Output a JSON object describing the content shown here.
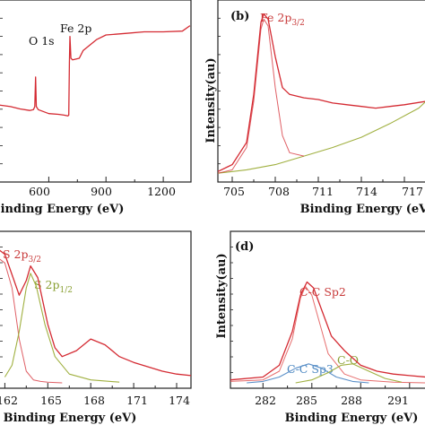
{
  "figure": {
    "panels": [
      {
        "id": "a",
        "tag": "",
        "xlabel": "Binding Energy (eV)",
        "ylabel": "",
        "xticks": [
          "600",
          "900",
          "1200"
        ],
        "annotations": [
          "O 1s",
          "Fe 2p"
        ]
      },
      {
        "id": "b",
        "tag": "(b)",
        "xlabel": "Binding Energy (eV)",
        "ylabel": "Intensity(au)",
        "xticks": [
          "705",
          "708",
          "711",
          "714",
          "717"
        ],
        "annotations": [
          "Fe 2p3/2"
        ]
      },
      {
        "id": "c",
        "tag": "",
        "xlabel": "Binding Energy (eV)",
        "ylabel": "",
        "xticks": [
          "162",
          "165",
          "168",
          "171",
          "174"
        ],
        "annotations": [
          "S 2p3/2",
          "S 2p1/2"
        ]
      },
      {
        "id": "d",
        "tag": "(d)",
        "xlabel": "Binding Energy (eV)",
        "ylabel": "Intensity(au)",
        "xticks": [
          "282",
          "285",
          "288",
          "291"
        ],
        "annotations": [
          "C-C Sp2",
          "C-C Sp3",
          "C-O"
        ]
      }
    ]
  },
  "colors": {
    "data": "#d42a32",
    "fit_green": "#a0b040",
    "fit_blue": "#5a8fc8",
    "sum_red": "#e04848",
    "label_red": "#c83a3a",
    "label_green": "#8aa034",
    "label_blue": "#4a86c0",
    "axis": "#222222"
  },
  "chart_data": [
    {
      "panel": "a",
      "type": "line",
      "xlabel": "Binding Energy (eV)",
      "xlim": [
        340,
        1345
      ],
      "series": [
        {
          "x": [
            340,
            400,
            450,
            500,
            520,
            527,
            531,
            535,
            545,
            600,
            650,
            680,
            700,
            705,
            708,
            711,
            716,
            725,
            760,
            780,
            800,
            850,
            900,
            1000,
            1100,
            1200,
            1300,
            1340
          ],
          "y": [
            46,
            45,
            43.5,
            42.5,
            43,
            45,
            64,
            45,
            43,
            40.5,
            40,
            39.5,
            39,
            39.5,
            73,
            90,
            76,
            75,
            76,
            81,
            83,
            88,
            91,
            92,
            93,
            93,
            93.5,
            97
          ]
        }
      ],
      "ylim": [
        0,
        110
      ]
    },
    {
      "panel": "b",
      "type": "line",
      "xlabel": "Binding Energy (eV)",
      "ylabel": "Intensity(au)",
      "xlim": [
        704,
        718.5
      ],
      "ylim": [
        0,
        100
      ],
      "series": [
        {
          "x": [
            704,
            705,
            706,
            706.5,
            707,
            707.2,
            707.5,
            708,
            708.5,
            709,
            710,
            711,
            712,
            713,
            714,
            715,
            716,
            717,
            718.5
          ],
          "y": [
            3,
            7,
            20,
            48,
            90,
            95,
            92,
            70,
            52,
            48,
            46,
            45,
            43,
            42,
            41,
            40,
            41,
            42,
            44
          ]
        },
        {
          "x": [
            704,
            706,
            708,
            710,
            712,
            714,
            716,
            718,
            718.5
          ],
          "y": [
            2,
            4,
            7,
            12,
            17,
            23,
            31,
            40,
            44
          ]
        },
        {
          "x": [
            704,
            705,
            706,
            706.5,
            707,
            707.2,
            707.5,
            708,
            708.5,
            709,
            710
          ],
          "y": [
            2,
            4,
            17,
            44,
            86,
            92,
            88,
            52,
            24,
            14,
            12
          ]
        }
      ]
    },
    {
      "panel": "c",
      "type": "line",
      "xlabel": "Binding Energy (eV)",
      "xlim": [
        161.6,
        175
      ],
      "ylim": [
        0,
        100
      ],
      "series": [
        {
          "x": [
            161.6,
            162,
            162.5,
            163,
            163.5,
            163.8,
            164.3,
            165,
            165.5,
            166,
            167,
            168,
            169,
            170,
            171,
            172,
            173,
            174,
            175
          ],
          "y": [
            91,
            88,
            74,
            60,
            70,
            80,
            72,
            40,
            24,
            18,
            22,
            30,
            26,
            18,
            14,
            11,
            8,
            6,
            5
          ]
        },
        {
          "x": [
            161.6,
            162,
            162.5,
            163,
            163.5,
            164,
            164.5,
            165,
            166
          ],
          "y": [
            85,
            82,
            65,
            30,
            8,
            2,
            1,
            0.5,
            0
          ]
        },
        {
          "x": [
            162,
            162.5,
            163,
            163.5,
            163.8,
            164.2,
            164.8,
            165.5,
            166.5,
            168,
            170
          ],
          "y": [
            4,
            12,
            35,
            65,
            75,
            66,
            40,
            18,
            6,
            2,
            0.5
          ]
        }
      ]
    },
    {
      "panel": "d",
      "type": "line",
      "xlabel": "Binding Energy (eV)",
      "ylabel": "Intensity(au)",
      "xlim": [
        280,
        292
      ],
      "ylim": [
        0,
        100
      ],
      "series": [
        {
          "x": [
            280,
            282,
            283,
            283.8,
            284.3,
            284.7,
            285.1,
            285.6,
            286.2,
            287,
            288,
            289,
            290,
            291,
            292
          ],
          "y": [
            2,
            4,
            12,
            35,
            60,
            69,
            65,
            50,
            32,
            22,
            12,
            8,
            6,
            5,
            4
          ]
        },
        {
          "x": [
            280,
            282,
            283,
            283.8,
            284.3,
            284.6,
            285.0,
            285.5,
            286,
            287,
            288,
            290,
            292
          ],
          "y": [
            1,
            2,
            8,
            30,
            58,
            66,
            60,
            40,
            20,
            6,
            2,
            0.5,
            0
          ]
        },
        {
          "x": [
            281,
            282,
            283,
            284,
            284.8,
            285.6,
            286.5,
            287.5,
            288.5
          ],
          "y": [
            0,
            1,
            4,
            10,
            13,
            10,
            4,
            1,
            0
          ]
        },
        {
          "x": [
            284,
            285,
            286,
            286.8,
            287.5,
            288.5,
            289.5,
            290.5
          ],
          "y": [
            0,
            2,
            7,
            12,
            13,
            8,
            3,
            0.5
          ]
        }
      ]
    }
  ]
}
